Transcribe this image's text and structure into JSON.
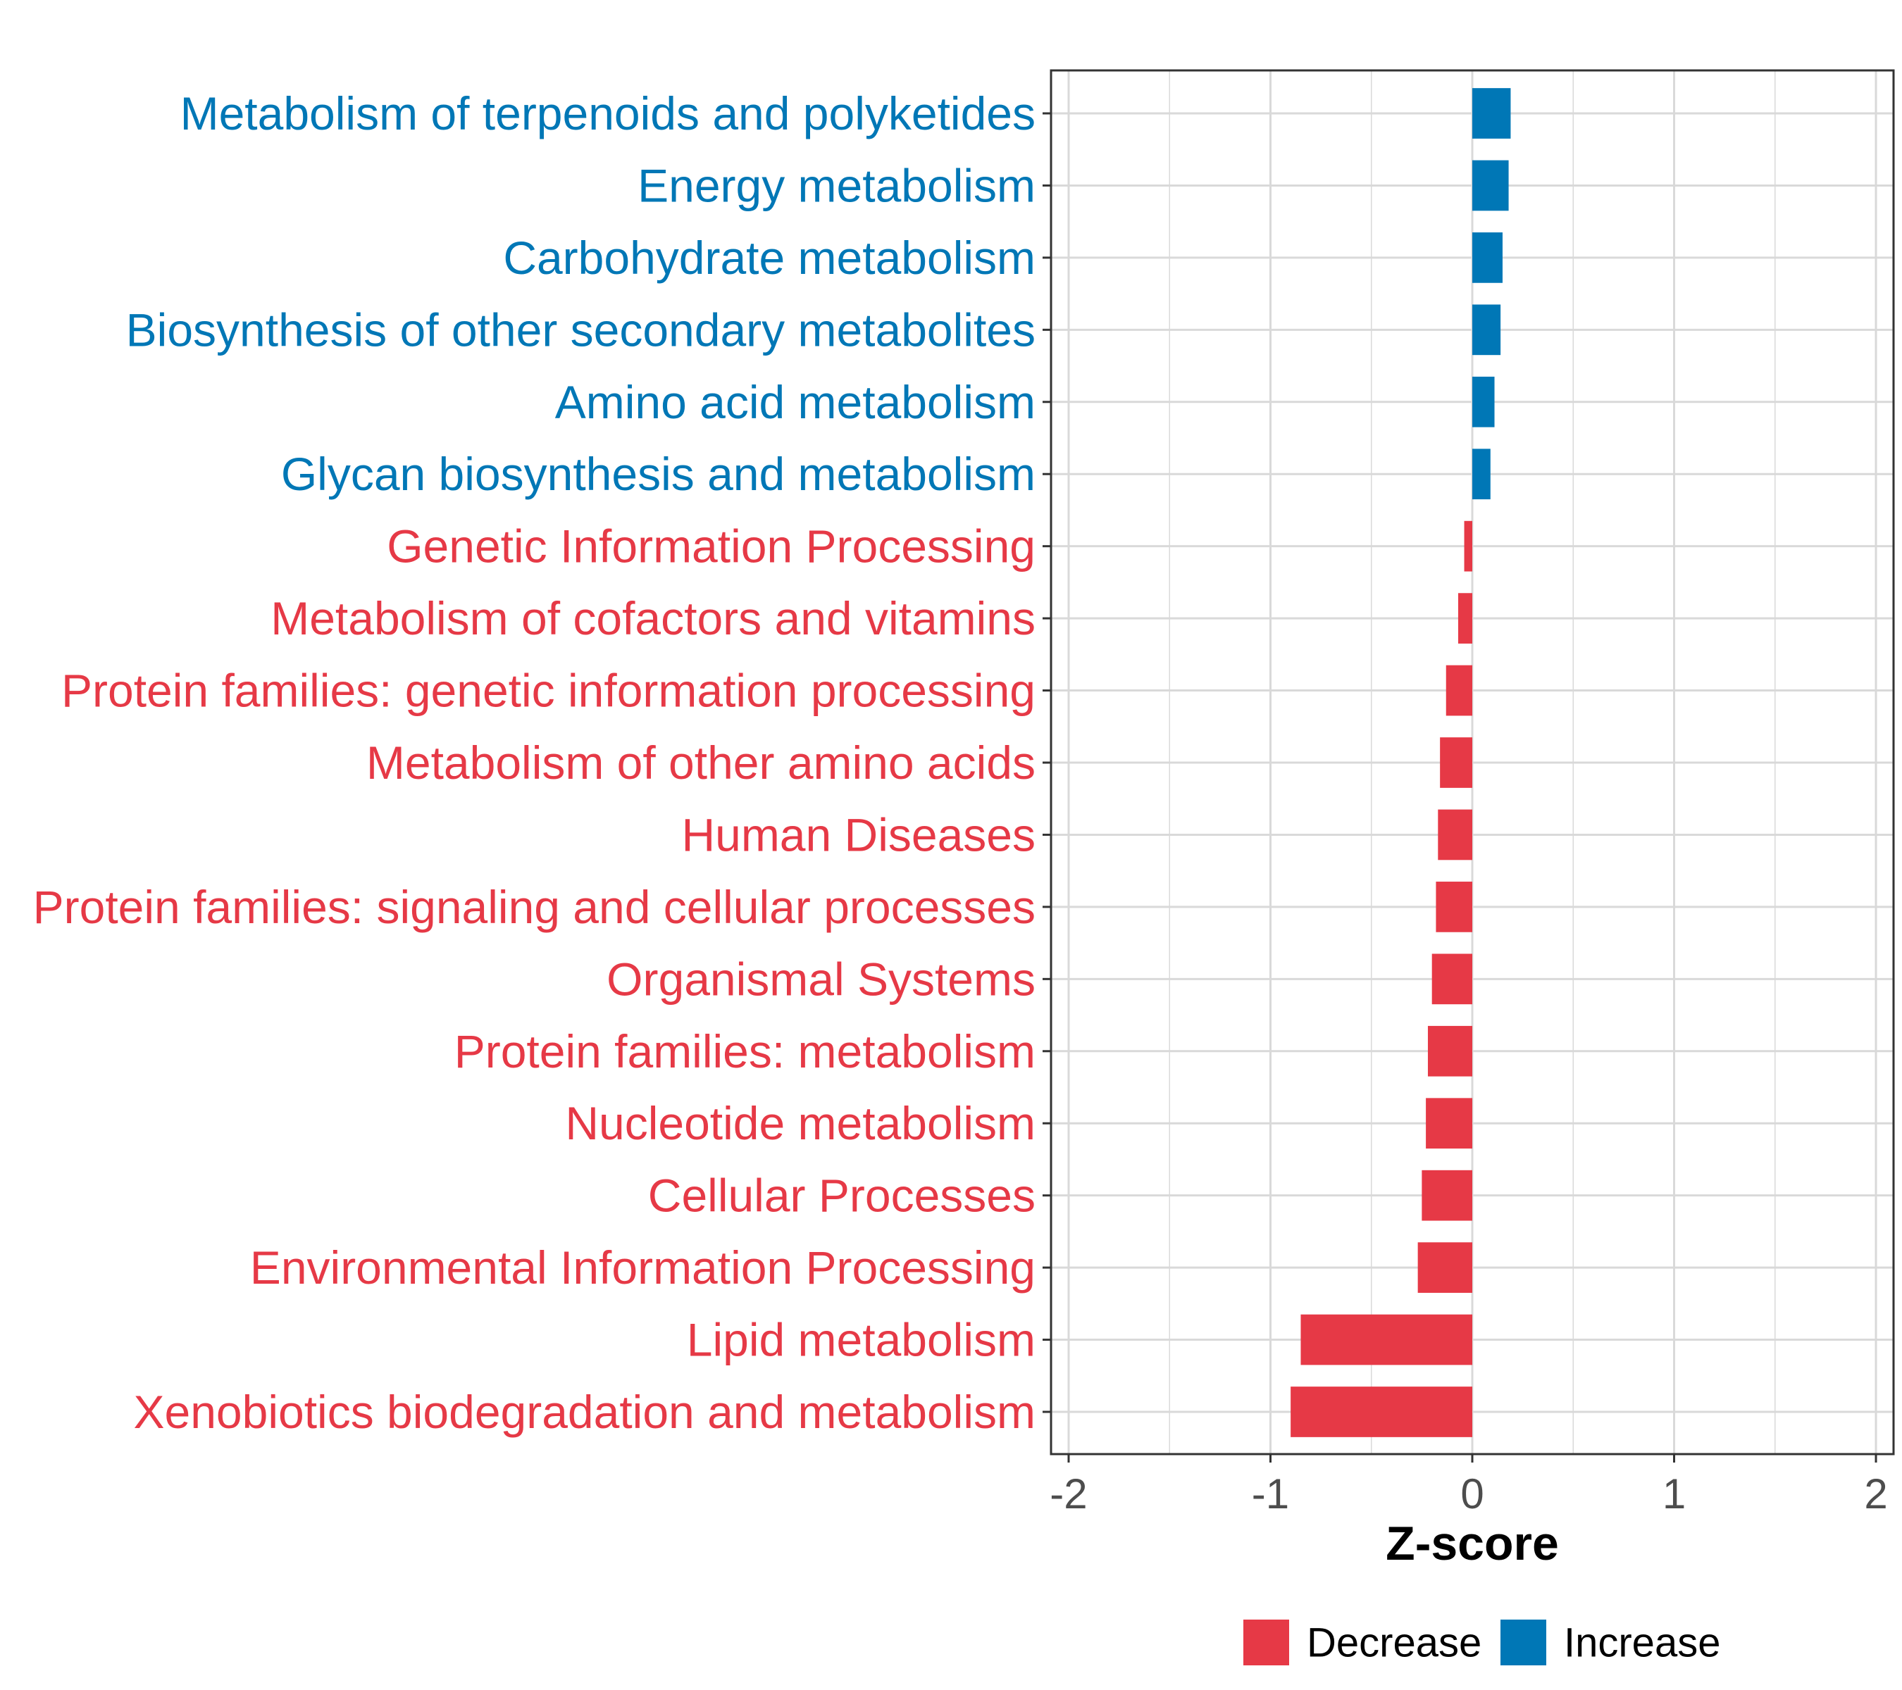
{
  "colors": {
    "decrease": "#e63946",
    "increase": "#0077b6",
    "grid": "#d9d9d9",
    "panel_border": "#333333"
  },
  "chart_data": {
    "type": "bar",
    "orientation": "horizontal",
    "xlabel": "Z-score",
    "xlim": [
      -2,
      2
    ],
    "xticks": [
      -2,
      -1,
      0,
      1,
      2
    ],
    "xtick_labels": [
      "-2",
      "-1",
      "0",
      "1",
      "2"
    ],
    "grid": true,
    "legend_position": "bottom",
    "legend": [
      {
        "name": "Decrease",
        "color_key": "decrease"
      },
      {
        "name": "Increase",
        "color_key": "increase"
      }
    ],
    "categories": [
      "Metabolism of terpenoids and polyketides",
      "Energy metabolism",
      "Carbohydrate metabolism",
      "Biosynthesis of other secondary metabolites",
      "Amino acid metabolism",
      "Glycan biosynthesis and metabolism",
      "Genetic Information Processing",
      "Metabolism of cofactors and vitamins",
      "Protein families: genetic information processing",
      "Metabolism of other amino acids",
      "Human Diseases",
      "Protein families: signaling and cellular processes",
      "Organismal Systems",
      "Protein families: metabolism",
      "Nucleotide metabolism",
      "Cellular Processes",
      "Environmental Information Processing",
      "Lipid metabolism",
      "Xenobiotics biodegradation and metabolism"
    ],
    "values": [
      0.19,
      0.18,
      0.15,
      0.14,
      0.11,
      0.09,
      -0.04,
      -0.07,
      -0.13,
      -0.16,
      -0.17,
      -0.18,
      -0.2,
      -0.22,
      -0.23,
      -0.25,
      -0.27,
      -0.85,
      -0.9
    ],
    "groups": [
      "Increase",
      "Increase",
      "Increase",
      "Increase",
      "Increase",
      "Increase",
      "Decrease",
      "Decrease",
      "Decrease",
      "Decrease",
      "Decrease",
      "Decrease",
      "Decrease",
      "Decrease",
      "Decrease",
      "Decrease",
      "Decrease",
      "Decrease",
      "Decrease"
    ]
  }
}
